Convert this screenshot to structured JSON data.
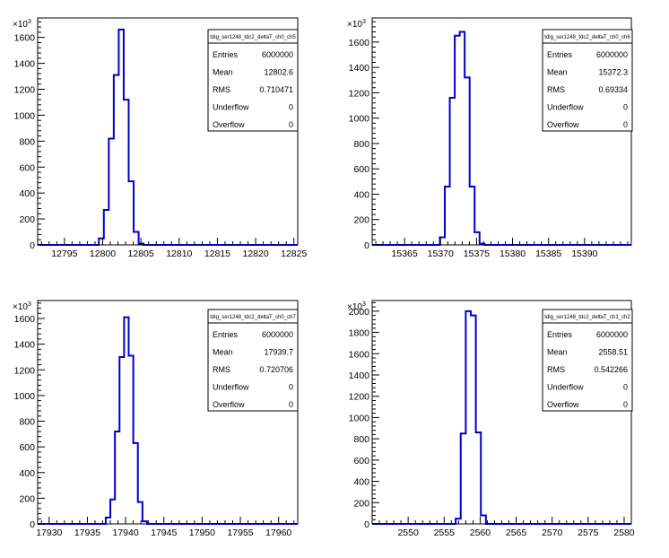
{
  "chart_data": [
    {
      "type": "bar",
      "histogram": true,
      "title": "tdig_ser1248_tdc2_deltaT_ch0_ch5",
      "xlim": [
        12791.5,
        12825.5
      ],
      "ylim": [
        0,
        1750000
      ],
      "x_ticks": [
        12795,
        12800,
        12805,
        12810,
        12815,
        12820,
        12825
      ],
      "y_ticks": [
        0,
        200,
        400,
        600,
        800,
        1000,
        1200,
        1400,
        1600
      ],
      "y_exponent_label": "×10³",
      "y_exponent_mantissa": "×10",
      "y_exponent_power": "3",
      "bins": {
        "start": 12799.5,
        "width": 0.65,
        "values": [
          50000,
          270000,
          820000,
          1310000,
          1660000,
          1120000,
          490000,
          100000,
          10000
        ]
      },
      "stats": [
        {
          "label": "Entries",
          "value": "6000000"
        },
        {
          "label": "Mean",
          "value": "12802.6"
        },
        {
          "label": "RMS",
          "value": "0.710471"
        },
        {
          "label": "Underflow",
          "value": "0"
        },
        {
          "label": "Overflow",
          "value": "0"
        }
      ]
    },
    {
      "type": "bar",
      "histogram": true,
      "title": "tdig_ser1248_tdc2_deltaT_ch0_ch6",
      "xlim": [
        15360.5,
        15396.5
      ],
      "ylim": [
        0,
        1790000
      ],
      "x_ticks": [
        15365,
        15370,
        15375,
        15380,
        15385,
        15390
      ],
      "y_ticks": [
        0,
        200,
        400,
        600,
        800,
        1000,
        1200,
        1400,
        1600
      ],
      "y_exponent_label": "×10³",
      "y_exponent_mantissa": "×10",
      "y_exponent_power": "3",
      "bins": {
        "start": 15369.9,
        "width": 0.69,
        "values": [
          60000,
          460000,
          1160000,
          1650000,
          1680000,
          1320000,
          460000,
          100000,
          10000
        ]
      },
      "stats": [
        {
          "label": "Entries",
          "value": "6000000"
        },
        {
          "label": "Mean",
          "value": "15372.3"
        },
        {
          "label": "RMS",
          "value": "0.69334"
        },
        {
          "label": "Underflow",
          "value": "0"
        },
        {
          "label": "Overflow",
          "value": "0"
        }
      ]
    },
    {
      "type": "bar",
      "histogram": true,
      "title": "tdig_ser1248_tdc2_deltaT_ch0_ch7",
      "xlim": [
        17928.5,
        17962.5
      ],
      "ylim": [
        0,
        1740000
      ],
      "x_ticks": [
        17930,
        17935,
        17940,
        17945,
        17950,
        17955,
        17960
      ],
      "y_ticks": [
        0,
        200,
        400,
        600,
        800,
        1000,
        1200,
        1400,
        1600
      ],
      "y_exponent_label": "×10³",
      "y_exponent_mantissa": "×10",
      "y_exponent_power": "3",
      "bins": {
        "start": 17937.4,
        "width": 0.6,
        "values": [
          50000,
          190000,
          720000,
          1300000,
          1610000,
          1310000,
          630000,
          170000,
          20000
        ]
      },
      "stats": [
        {
          "label": "Entries",
          "value": "6000000"
        },
        {
          "label": "Mean",
          "value": "17939.7"
        },
        {
          "label": "RMS",
          "value": "0.720706"
        },
        {
          "label": "Underflow",
          "value": "0"
        },
        {
          "label": "Overflow",
          "value": "0"
        }
      ]
    },
    {
      "type": "bar",
      "histogram": true,
      "title": "tdig_ser1248_tdc2_deltaT_ch1_ch2",
      "xlim": [
        2545,
        2581
      ],
      "ylim": [
        0,
        2100000
      ],
      "x_ticks": [
        2550,
        2555,
        2560,
        2565,
        2570,
        2575,
        2580
      ],
      "y_ticks": [
        0,
        200,
        400,
        600,
        800,
        1000,
        1200,
        1400,
        1600,
        1800,
        2000
      ],
      "y_exponent_label": "×10³",
      "y_exponent_mantissa": "×10",
      "y_exponent_power": "3",
      "bins": {
        "start": 2556.6,
        "width": 0.7,
        "values": [
          50000,
          850000,
          2000000,
          1960000,
          860000,
          80000
        ]
      },
      "stats": [
        {
          "label": "Entries",
          "value": "6000000"
        },
        {
          "label": "Mean",
          "value": "2558.51"
        },
        {
          "label": "RMS",
          "value": "0.542266"
        },
        {
          "label": "Underflow",
          "value": "0"
        },
        {
          "label": "Overflow",
          "value": "0"
        }
      ]
    }
  ],
  "colors": {
    "histogram_line": "#0000cc",
    "axis": "#000000",
    "stat_border": "#000000"
  }
}
